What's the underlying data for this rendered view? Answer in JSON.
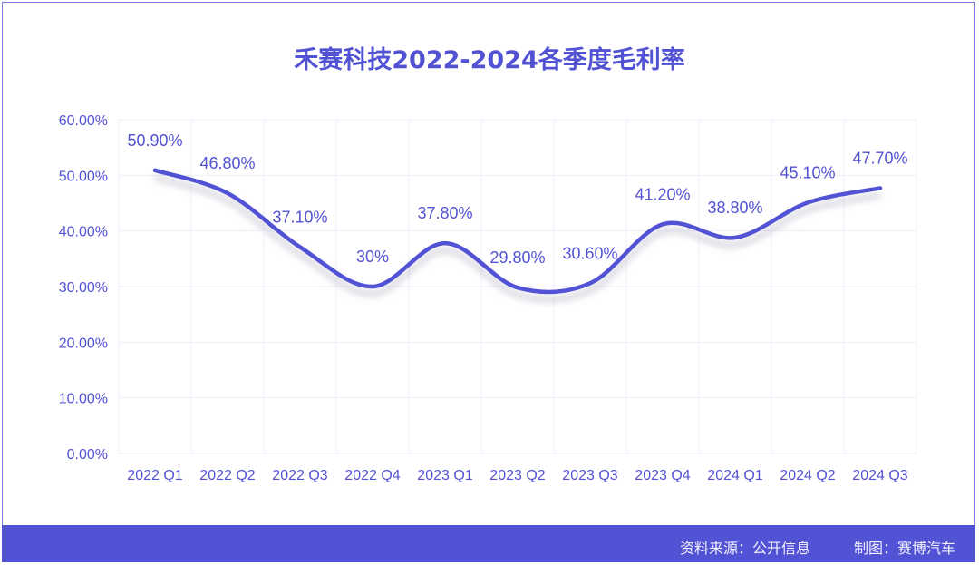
{
  "chart_data": {
    "type": "line",
    "title": "禾赛科技2022-2024各季度毛利率",
    "categories": [
      "2022 Q1",
      "2022 Q2",
      "2022 Q3",
      "2022 Q4",
      "2023 Q1",
      "2023 Q2",
      "2023 Q3",
      "2023 Q4",
      "2024 Q1",
      "2024 Q2",
      "2024 Q3"
    ],
    "series": [
      {
        "name": "毛利率",
        "values": [
          50.9,
          46.8,
          37.1,
          30,
          37.8,
          29.8,
          30.6,
          41.2,
          38.8,
          45.1,
          47.7
        ]
      }
    ],
    "data_labels": [
      "50.90%",
      "46.80%",
      "37.10%",
      "30%",
      "37.80%",
      "29.80%",
      "30.60%",
      "41.20%",
      "38.80%",
      "45.10%",
      "47.70%"
    ],
    "yticks": [
      "0.00%",
      "10.00%",
      "20.00%",
      "30.00%",
      "40.00%",
      "50.00%",
      "60.00%"
    ],
    "ylim": [
      0,
      60
    ],
    "xlabel": "",
    "ylabel": "",
    "grid": true,
    "colors": {
      "line": "#5252d4",
      "text": "#5252d4",
      "grid": "#eeeefa"
    }
  },
  "footer": {
    "source": "资料来源：公开信息",
    "maker": "制图：赛博汽车"
  }
}
